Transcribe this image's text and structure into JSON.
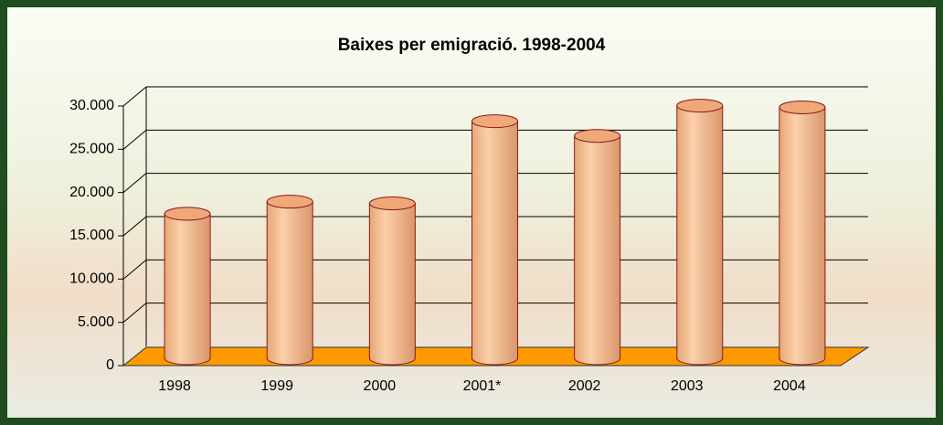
{
  "chart_data": {
    "type": "bar",
    "title": "Baixes per emigració. 1998-2004",
    "categories": [
      "1998",
      "1999",
      "2000",
      "2001*",
      "2002",
      "2003",
      "2004"
    ],
    "values": [
      16700,
      18100,
      17900,
      27400,
      25700,
      29200,
      29000
    ],
    "color": "#f4b987",
    "ylim": [
      0,
      30000
    ],
    "yticks": [
      0,
      {
        "value": 5000,
        "label": "5.000"
      },
      {
        "value": 10000,
        "label": "10.000"
      },
      {
        "value": 15000,
        "label": "15.000"
      },
      {
        "value": 20000,
        "label": "20.000"
      },
      {
        "value": 25000,
        "label": "25.000"
      },
      {
        "value": 30000,
        "label": "30.000"
      }
    ],
    "grid": true
  }
}
